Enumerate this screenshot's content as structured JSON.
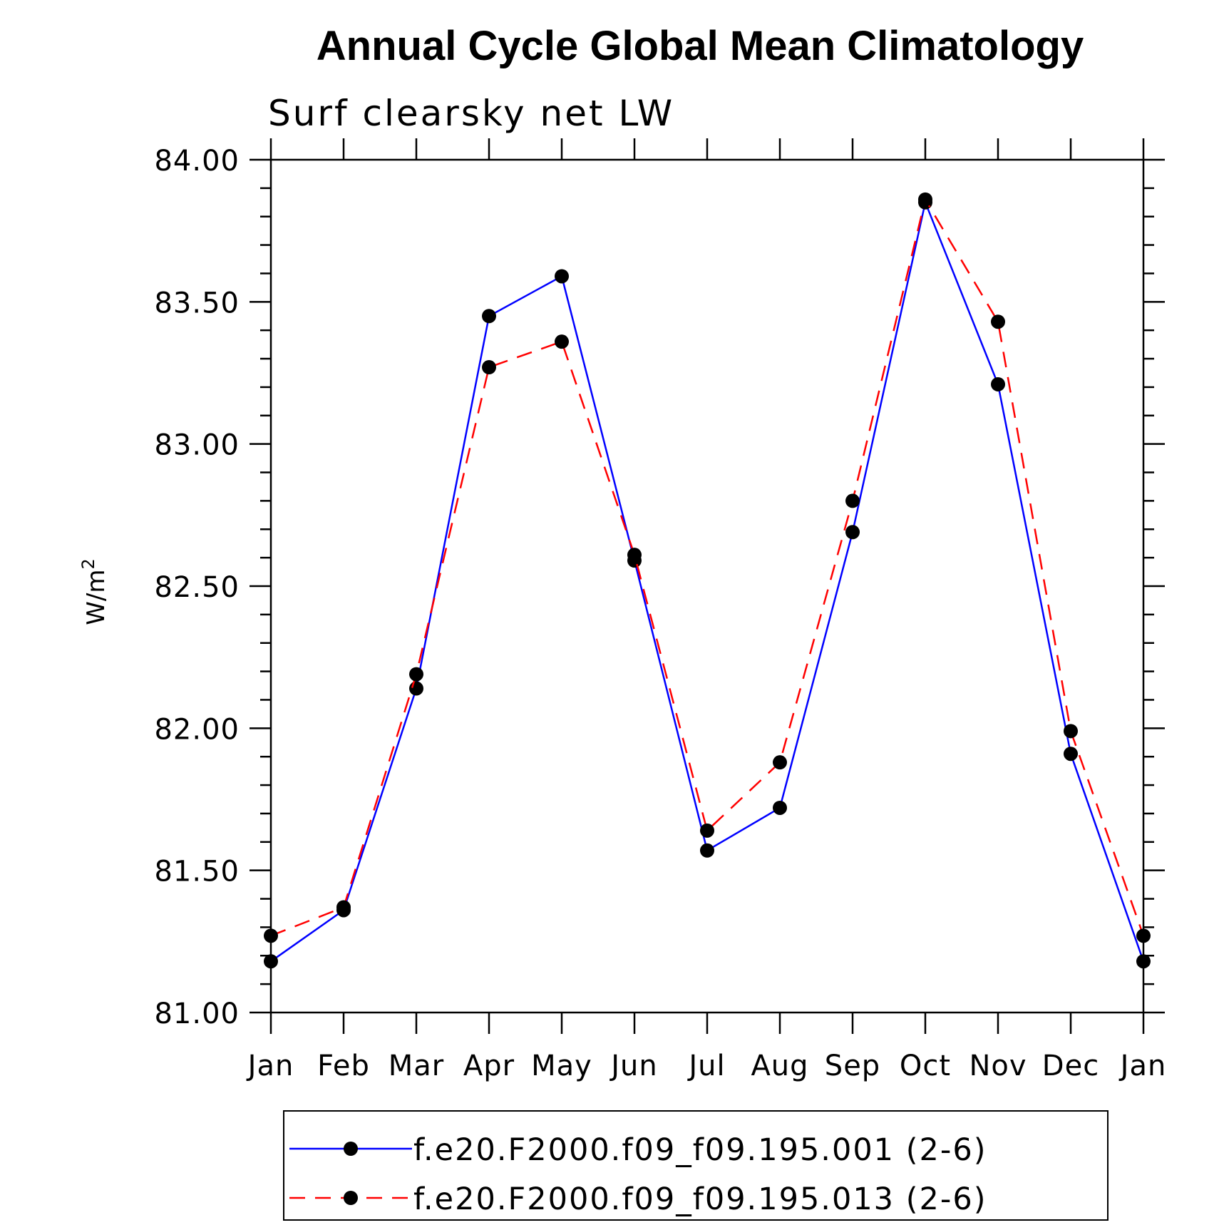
{
  "chart_data": {
    "type": "line",
    "title": "Annual Cycle Global Mean Climatology",
    "subtitle": "Surf clearsky net LW",
    "xlabel": "",
    "ylabel": "W/m",
    "ylabel_superscript": "2",
    "categories": [
      "Jan",
      "Feb",
      "Mar",
      "Apr",
      "May",
      "Jun",
      "Jul",
      "Aug",
      "Sep",
      "Oct",
      "Nov",
      "Dec",
      "Jan"
    ],
    "ylim": [
      81.0,
      84.0
    ],
    "yticks": [
      "81.00",
      "81.50",
      "82.00",
      "82.50",
      "83.00",
      "83.50",
      "84.00"
    ],
    "ytick_values": [
      81.0,
      81.5,
      82.0,
      82.5,
      83.0,
      83.5,
      84.0
    ],
    "grid": false,
    "legend_position": "bottom",
    "series": [
      {
        "name": "f.e20.F2000.f09_f09.195.001 (2-6)",
        "color": "#0000ff",
        "dash": "solid",
        "values": [
          81.18,
          81.36,
          82.14,
          83.45,
          83.59,
          82.59,
          81.57,
          81.72,
          82.69,
          83.85,
          83.21,
          81.91,
          81.18
        ]
      },
      {
        "name": "f.e20.F2000.f09_f09.195.013 (2-6)",
        "color": "#ff0000",
        "dash": "dashed",
        "values": [
          81.27,
          81.37,
          82.19,
          83.27,
          83.36,
          82.61,
          81.64,
          81.88,
          82.8,
          83.86,
          83.43,
          81.99,
          81.27
        ]
      }
    ]
  }
}
